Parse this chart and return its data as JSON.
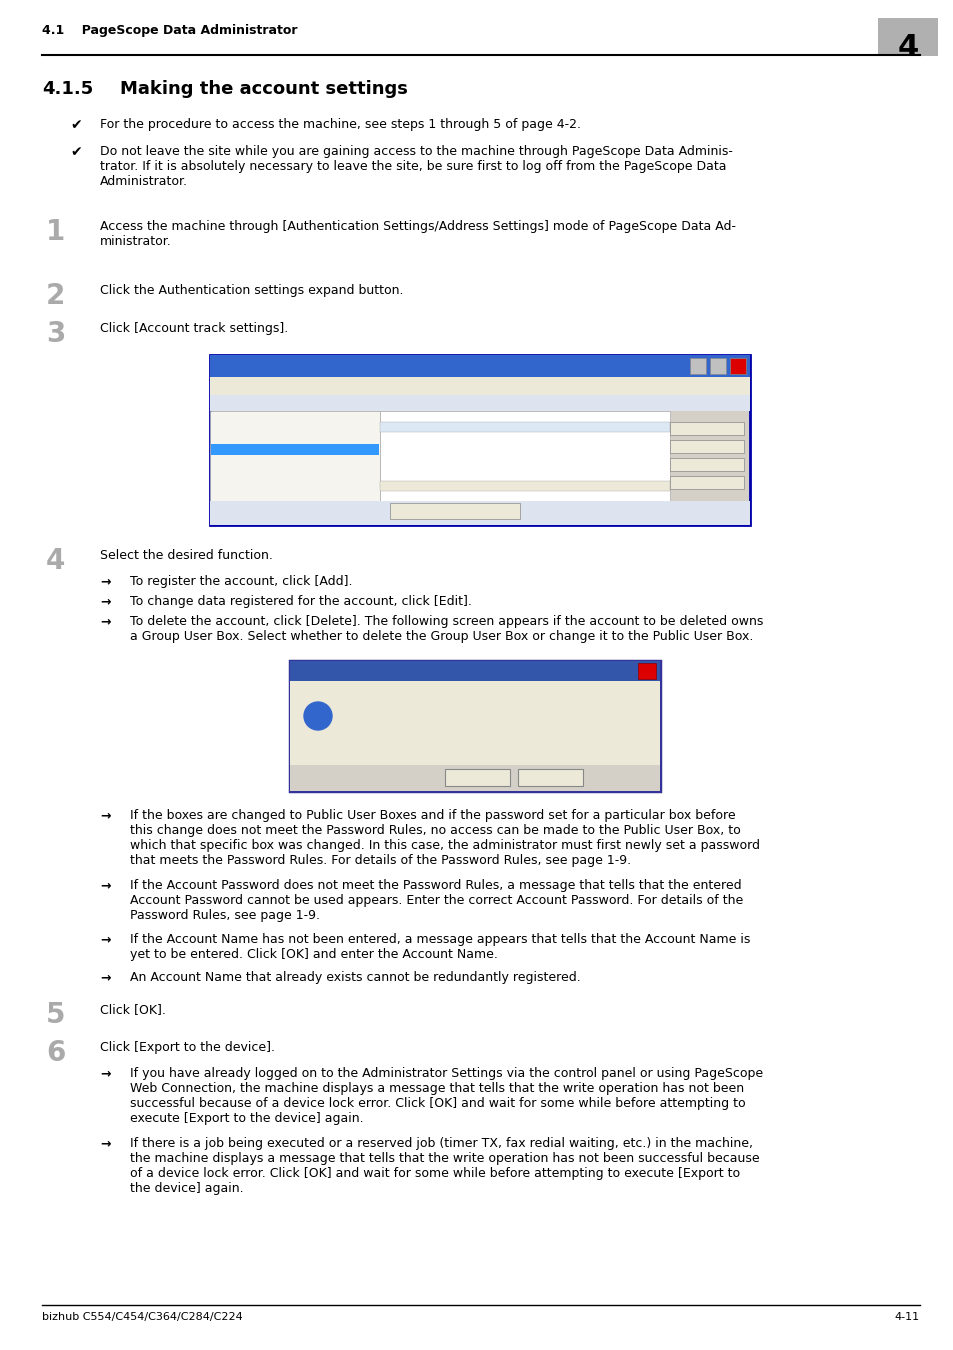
{
  "page_bg": "#ffffff",
  "header_text": "4.1    PageScope Data Administrator",
  "header_number": "4",
  "header_number_bg": "#b0b0b0",
  "footer_left": "bizhub C554/C454/C364/C284/C224",
  "footer_right": "4-11",
  "section_number": "4.1.5",
  "section_title": "Making the account settings",
  "check_bullets": [
    "For the procedure to access the machine, see steps 1 through 5 of page 4-2.",
    "Do not leave the site while you are gaining access to the machine through PageScope Data Adminis-\ntrator. If it is absolutely necessary to leave the site, be sure first to log off from the PageScope Data\nAdministrator."
  ],
  "step1_text": "Access the machine through [Authentication Settings/Address Settings] mode of PageScope Data Ad-\nministrator.",
  "step2_text": "Click the Authentication settings expand button.",
  "step3_text": "Click [Account track settings].",
  "step4_text": "Select the desired function.",
  "step5_text": "Click [OK].",
  "step6_text": "Click [Export to the device].",
  "step4_arrows": [
    "To register the account, click [Add].",
    "To change data registered for the account, click [Edit].",
    "To delete the account, click [Delete]. The following screen appears if the account to be deleted owns\na Group User Box. Select whether to delete the Group User Box or change it to the Public User Box."
  ],
  "step4_arrows2": [
    "If the boxes are changed to Public User Boxes and if the password set for a particular box before\nthis change does not meet the Password Rules, no access can be made to the Public User Box, to\nwhich that specific box was changed. In this case, the administrator must first newly set a password\nthat meets the Password Rules. For details of the Password Rules, see page 1-9.",
    "If the Account Password does not meet the Password Rules, a message that tells that the entered\nAccount Password cannot be used appears. Enter the correct Account Password. For details of the\nPassword Rules, see page 1-9.",
    "If the Account Name has not been entered, a message appears that tells that the Account Name is\nyet to be entered. Click [OK] and enter the Account Name.",
    "An Account Name that already exists cannot be redundantly registered."
  ],
  "step6_arrows": [
    "If you have already logged on to the Administrator Settings via the control panel or using PageScope\nWeb Connection, the machine displays a message that tells that the write operation has not been\nsuccessful because of a device lock error. Click [OK] and wait for some while before attempting to\nexecute [Export to the device] again.",
    "If there is a job being executed or a reserved job (timer TX, fax redial waiting, etc.) in the machine,\nthe machine displays a message that tells that the write operation has not been successful because\nof a device lock error. Click [OK] and wait for some while before attempting to execute [Export to\nthe device] again."
  ]
}
